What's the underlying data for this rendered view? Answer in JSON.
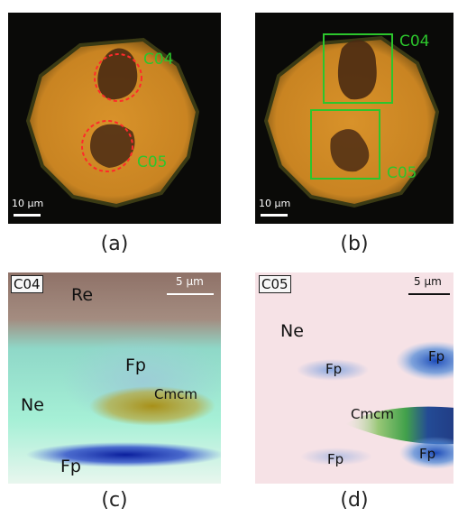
{
  "panel_a": {
    "caption": "(a)",
    "labels": [
      "C04",
      "C05"
    ],
    "scale_bar": "10 μm"
  },
  "panel_b": {
    "caption": "(b)",
    "labels": [
      "C04",
      "C05"
    ],
    "scale_bar": "10 μm"
  },
  "panel_c": {
    "caption": "(c)",
    "tag": "C04",
    "scale_bar": "5 μm",
    "phases": [
      "Re",
      "Fp",
      "Ne",
      "Cmcm",
      "Fp"
    ]
  },
  "panel_d": {
    "caption": "(d)",
    "tag": "C05",
    "scale_bar": "5 μm",
    "phases": [
      "Ne",
      "Fp",
      "Fp",
      "Cmcm",
      "Fp",
      "Fp"
    ]
  },
  "colors": {
    "sample": "#d08a22",
    "outline_marker": "#ff2a2a",
    "box_marker": "#2cc52c"
  }
}
